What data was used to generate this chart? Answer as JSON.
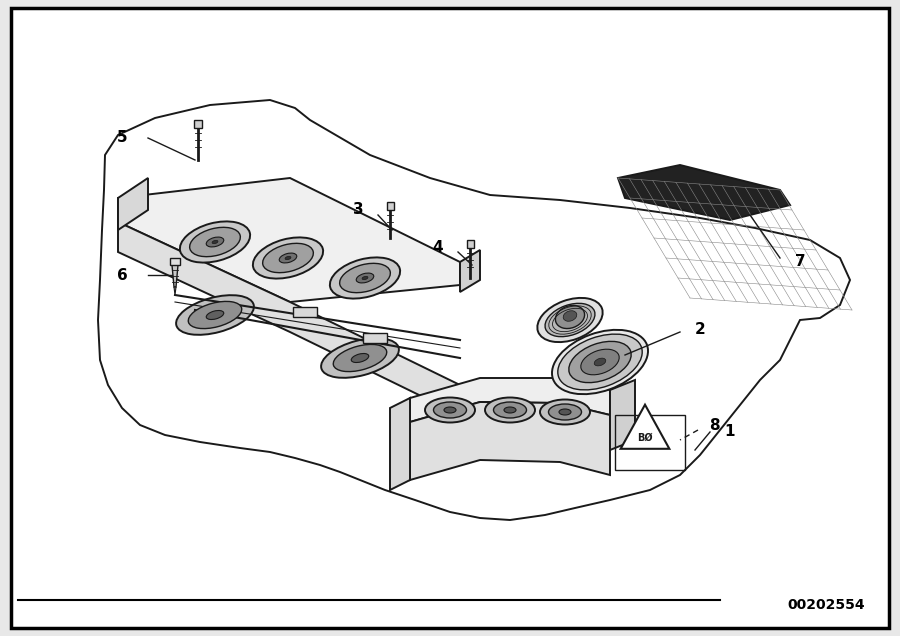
{
  "background_color": "#e8e8e8",
  "border_color": "#000000",
  "diagram_bg": "#ffffff",
  "watermark_text": "00202554",
  "line_color": "#1a1a1a",
  "label_fontsize": 11,
  "watermark_fontsize": 10,
  "figsize": [
    9.0,
    6.36
  ],
  "dpi": 100
}
